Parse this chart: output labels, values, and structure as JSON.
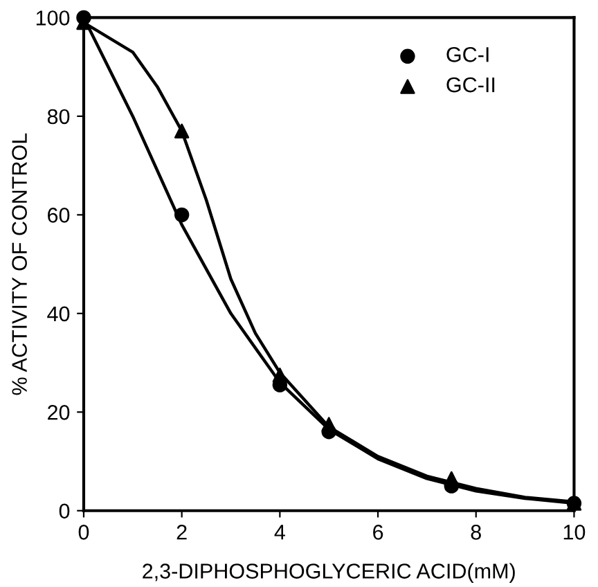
{
  "chart_data": {
    "type": "scatter",
    "xlabel": "2,3-DIPHOSPHOGLYCERIC ACID(mM)",
    "ylabel": "% ACTIVITY OF CONTROL",
    "xlim": [
      0,
      10
    ],
    "ylim": [
      0,
      100
    ],
    "xticks": [
      0,
      2,
      4,
      6,
      8,
      10
    ],
    "yticks": [
      0,
      20,
      40,
      60,
      80,
      100
    ],
    "legend": "top right",
    "grid": false,
    "series": [
      {
        "name": "GC-I",
        "marker": "circle",
        "color": "#000000",
        "x": [
          0,
          2,
          4,
          5,
          7.5,
          10
        ],
        "values": [
          100,
          60,
          25.5,
          16,
          5,
          1.5
        ]
      },
      {
        "name": "GC-II",
        "marker": "triangle",
        "color": "#000000",
        "x": [
          0,
          2,
          4,
          5,
          7.5,
          10
        ],
        "values": [
          99,
          77,
          27.5,
          17.5,
          6.5,
          1.5
        ]
      },
      {
        "type": "line",
        "color": "#000000",
        "x": [
          0,
          1,
          2,
          3,
          4,
          5,
          6,
          7,
          8,
          9,
          10
        ],
        "values": [
          100,
          80,
          58,
          40,
          26,
          16.5,
          10.5,
          6.5,
          4,
          2.5,
          1.5
        ]
      },
      {
        "type": "line",
        "color": "#000000",
        "x": [
          0,
          1,
          1.5,
          2,
          2.5,
          3,
          3.5,
          4,
          5,
          6,
          7,
          8,
          9,
          10
        ],
        "values": [
          99,
          93,
          86,
          77,
          63,
          47,
          36,
          28,
          17,
          11,
          7,
          4.5,
          2.7,
          1.8
        ]
      }
    ]
  }
}
